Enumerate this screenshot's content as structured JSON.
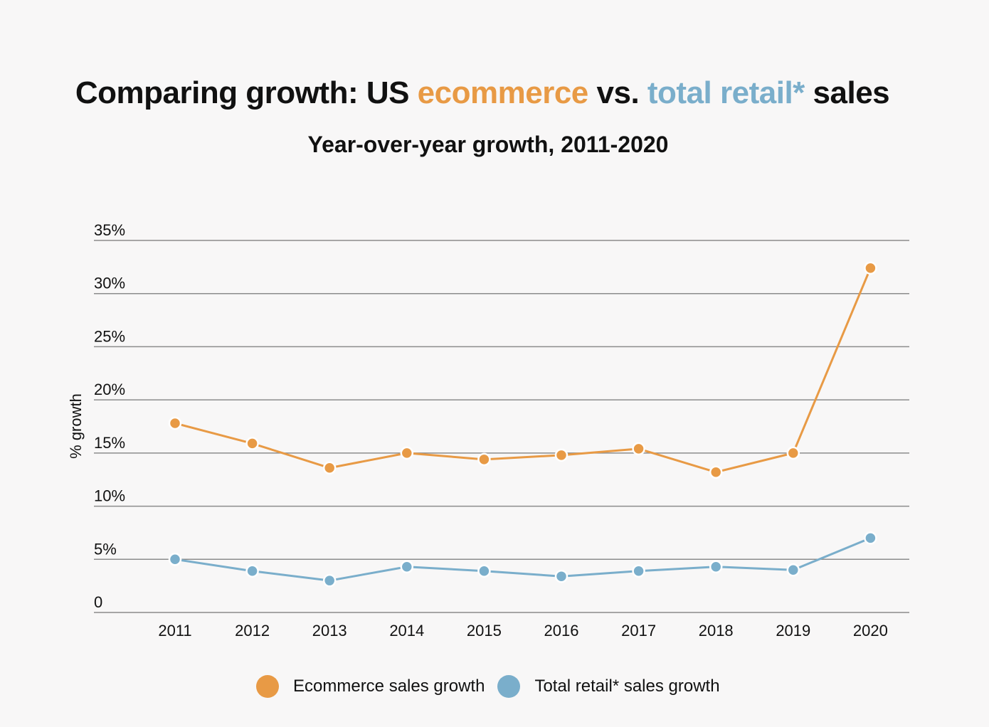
{
  "title": {
    "part1": "Comparing growth: US ",
    "ecommerce": "ecommerce",
    "part2": " vs. ",
    "total_retail": "total retail*",
    "part3": " sales"
  },
  "subtitle": "Year-over-year growth, 2011-2020",
  "colors": {
    "ecommerce": "#e89a45",
    "retail": "#7aaecb",
    "grid": "#8c8c8c",
    "background": "#f8f7f7"
  },
  "chart_data": {
    "type": "line",
    "title": "Comparing growth: US ecommerce vs. total retail* sales",
    "subtitle": "Year-over-year growth, 2011-2020",
    "xlabel": "",
    "ylabel": "% growth",
    "ylim": [
      0,
      35
    ],
    "y_ticks": [
      0,
      5,
      10,
      15,
      20,
      25,
      30,
      35
    ],
    "y_tick_labels": [
      "0",
      "5%",
      "10%",
      "15%",
      "20%",
      "25%",
      "30%",
      "35%"
    ],
    "grid": true,
    "legend_position": "bottom",
    "categories": [
      "2011",
      "2012",
      "2013",
      "2014",
      "2015",
      "2016",
      "2017",
      "2018",
      "2019",
      "2020"
    ],
    "series": [
      {
        "name": "Ecommerce sales growth",
        "color": "#e89a45",
        "values": [
          17.8,
          15.9,
          13.6,
          15.0,
          14.4,
          14.8,
          15.4,
          13.2,
          15.0,
          32.4
        ]
      },
      {
        "name": "Total retail* sales growth",
        "color": "#7aaecb",
        "values": [
          5.0,
          3.9,
          3.0,
          4.3,
          3.9,
          3.4,
          3.9,
          4.3,
          4.0,
          7.0
        ]
      }
    ]
  }
}
